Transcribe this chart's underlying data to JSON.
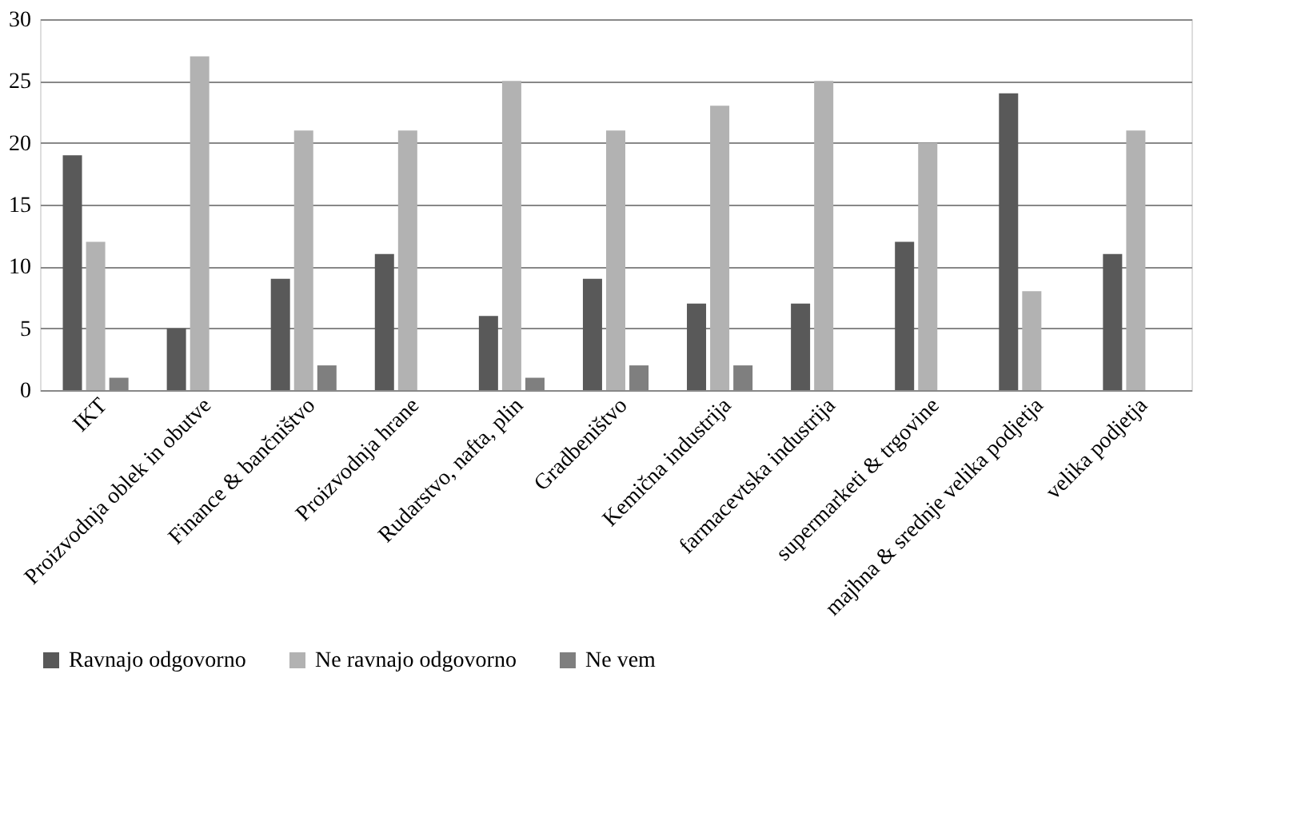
{
  "chart_data": {
    "type": "bar",
    "categories": [
      "IKT",
      "Proizvodnja oblek in obutve",
      "Finance & bančništvo",
      "Proizvodnja hrane",
      "Rudarstvo, nafta, plin",
      "Gradbeništvo",
      "Kemična industrija",
      "farmacevtska industrija",
      "supermarketi & trgovine",
      "majhna & srednje velika podjetja",
      "velika podjetja"
    ],
    "series": [
      {
        "name": "Ravnajo odgovorno",
        "color": "#595959",
        "values": [
          19,
          5,
          9,
          11,
          6,
          9,
          7,
          7,
          12,
          24,
          11
        ]
      },
      {
        "name": "Ne ravnajo odgovorno",
        "color": "#b2b2b2",
        "values": [
          12,
          27,
          21,
          21,
          25,
          21,
          23,
          25,
          20,
          8,
          21
        ]
      },
      {
        "name": "Ne vem",
        "color": "#7f7f7f",
        "values": [
          1,
          null,
          2,
          null,
          1,
          2,
          2,
          null,
          null,
          null,
          null
        ]
      }
    ],
    "ylim": [
      0,
      30
    ],
    "yticks": [
      0,
      5,
      10,
      15,
      20,
      25,
      30
    ],
    "grid": "y",
    "legend": "bottom"
  }
}
